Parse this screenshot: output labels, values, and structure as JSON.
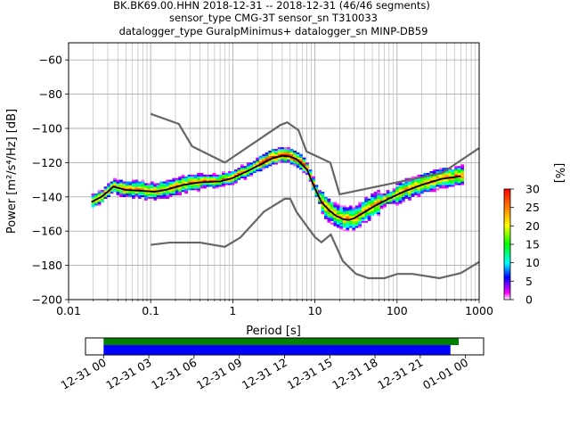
{
  "title_lines": [
    "BK.BK69.00.HHN   2018-12-31 -- 2018-12-31  (46/46 segments)",
    "sensor_type CMG-3T sensor_sn T310033",
    "datalogger_type GuralpMinimus+ datalogger_sn MINP-DB59"
  ],
  "colors": {
    "median": "#000000",
    "noise_models": "#666666",
    "grid": "#b0b0b0",
    "coverage_all": "#0000ff",
    "coverage_used": "#008000"
  },
  "chart_data": [
    {
      "type": "heatmap",
      "description_kind": "probabilistic power spectral density",
      "xlabel": "Period [s]",
      "ylabel": "Power [m²/s⁴/Hz] [dB]",
      "xscale": "log",
      "xlim": [
        0.01,
        1000
      ],
      "ylim": [
        -200,
        -50
      ],
      "x_ticks": [
        0.01,
        0.1,
        1,
        10,
        100,
        1000
      ],
      "x_tick_labels": [
        "0.01",
        "0.1",
        "1",
        "10",
        "100",
        "1000"
      ],
      "y_ticks": [
        -200,
        -180,
        -160,
        -140,
        -120,
        -100,
        -80,
        -60
      ],
      "y_tick_labels": [
        "−200",
        "−180",
        "−160",
        "−140",
        "−120",
        "−100",
        "−80",
        "−60"
      ],
      "grid": true,
      "colorbar": {
        "label": "[%]",
        "range": [
          0,
          30
        ],
        "ticks": [
          0,
          5,
          10,
          15,
          20,
          25,
          30
        ],
        "tick_labels": [
          "0",
          "5",
          "10",
          "15",
          "20",
          "25",
          "30"
        ]
      },
      "median_curve": {
        "period": [
          0.019,
          0.025,
          0.03,
          0.035,
          0.05,
          0.08,
          0.11,
          0.15,
          0.25,
          0.4,
          0.7,
          1,
          1.5,
          2.2,
          3,
          4,
          5,
          6,
          8,
          10,
          12,
          15,
          18,
          22,
          26,
          30,
          40,
          55,
          80,
          120,
          200,
          350,
          600
        ],
        "power": [
          -143,
          -140,
          -137,
          -134,
          -136,
          -136.5,
          -137,
          -136,
          -133,
          -131.5,
          -131,
          -129,
          -125,
          -121,
          -117.5,
          -116,
          -116.5,
          -118,
          -124,
          -135,
          -143,
          -148,
          -151,
          -153,
          -153.5,
          -152.5,
          -149,
          -145,
          -141,
          -137,
          -133,
          -129.5,
          -128
        ]
      },
      "noise_models": [
        {
          "model": "high",
          "period": [
            0.1,
            0.22,
            0.32,
            0.8,
            3.8,
            4.6,
            6.3,
            7.9,
            15.4,
            20,
            354.8,
            1000
          ],
          "power": [
            -91.5,
            -97.4,
            -110.5,
            -120,
            -98,
            -96.5,
            -101,
            -113.5,
            -120,
            -138.5,
            -126,
            -111.5
          ]
        },
        {
          "model": "low",
          "period": [
            0.1,
            0.17,
            0.4,
            0.8,
            1.24,
            2.4,
            4.3,
            5,
            6,
            10,
            12,
            15.6,
            21.9,
            31.6,
            45,
            70,
            101,
            154,
            328,
            600,
            1000
          ],
          "power": [
            -168,
            -166.7,
            -166.7,
            -169.2,
            -163.7,
            -148.6,
            -141.1,
            -141.1,
            -149,
            -163.5,
            -166.5,
            -162,
            -177.5,
            -185,
            -187.5,
            -187.5,
            -185,
            -185,
            -187.5,
            -184.5,
            -178
          ]
        }
      ]
    },
    {
      "type": "bar",
      "description_kind": "data coverage timeline",
      "x_tick_labels": [
        "12-31 00",
        "12-31 03",
        "12-31 06",
        "12-31 09",
        "12-31 12",
        "12-31 15",
        "12-31 18",
        "12-31 21",
        "01-01 00"
      ],
      "x_range_hours": [
        -1.2,
        25.2
      ],
      "series": [
        {
          "color": "green",
          "start_hour": 0,
          "end_hour": 23.55
        },
        {
          "color": "blue",
          "start_hour": 0,
          "end_hour": 23.0
        }
      ]
    }
  ]
}
